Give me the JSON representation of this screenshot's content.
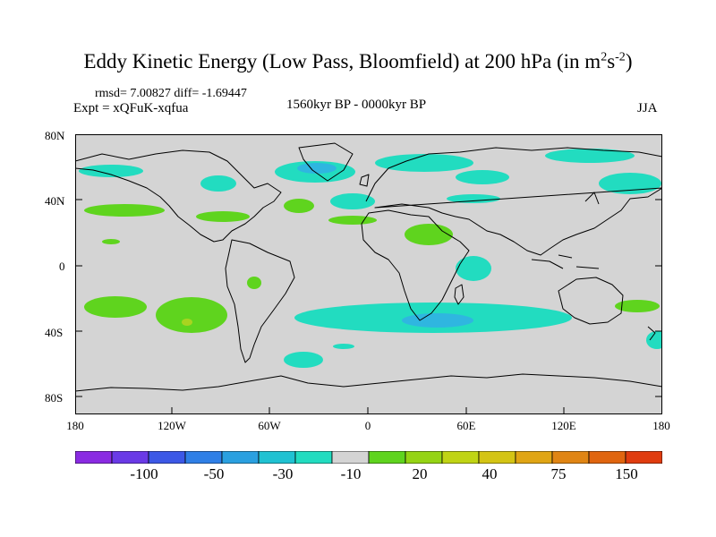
{
  "title": "Eddy Kinetic Energy (Low Pass, Bloomfield) at 200 hPa (in m",
  "title_unit_sup1": "2",
  "title_unit_mid": "s",
  "title_unit_sup2": "-2",
  "title_close": ")",
  "stats_line": "rmsd= 7.00827 diff= -1.69447",
  "expt_line": "Expt = xQFuK-xqfua",
  "period": "1560kyr BP - 0000kyr BP",
  "season": "JJA",
  "lat_labels": [
    "80N",
    "40N",
    "0",
    "40S",
    "80S"
  ],
  "lon_labels": [
    "180",
    "120W",
    "60W",
    "0",
    "60E",
    "120E",
    "180"
  ],
  "colorbar": {
    "colors": [
      "#8a2be2",
      "#6a3ae6",
      "#3c58e6",
      "#2f7fe6",
      "#2aa0e0",
      "#20c2d2",
      "#22dcc0",
      "#d4d4d4",
      "#5fd41e",
      "#95d414",
      "#c0d414",
      "#d4c414",
      "#e0a514",
      "#e08514",
      "#e0650f",
      "#e03c0f"
    ],
    "labels": [
      "-100",
      "-50",
      "-30",
      "-10",
      "20",
      "40",
      "75",
      "150"
    ]
  },
  "map_colors": {
    "ocean": "#d4d4d4",
    "cyan": "#22dcc0",
    "green": "#5fd41e",
    "yellowgreen": "#a8d420",
    "blue": "#2fb6e0"
  }
}
